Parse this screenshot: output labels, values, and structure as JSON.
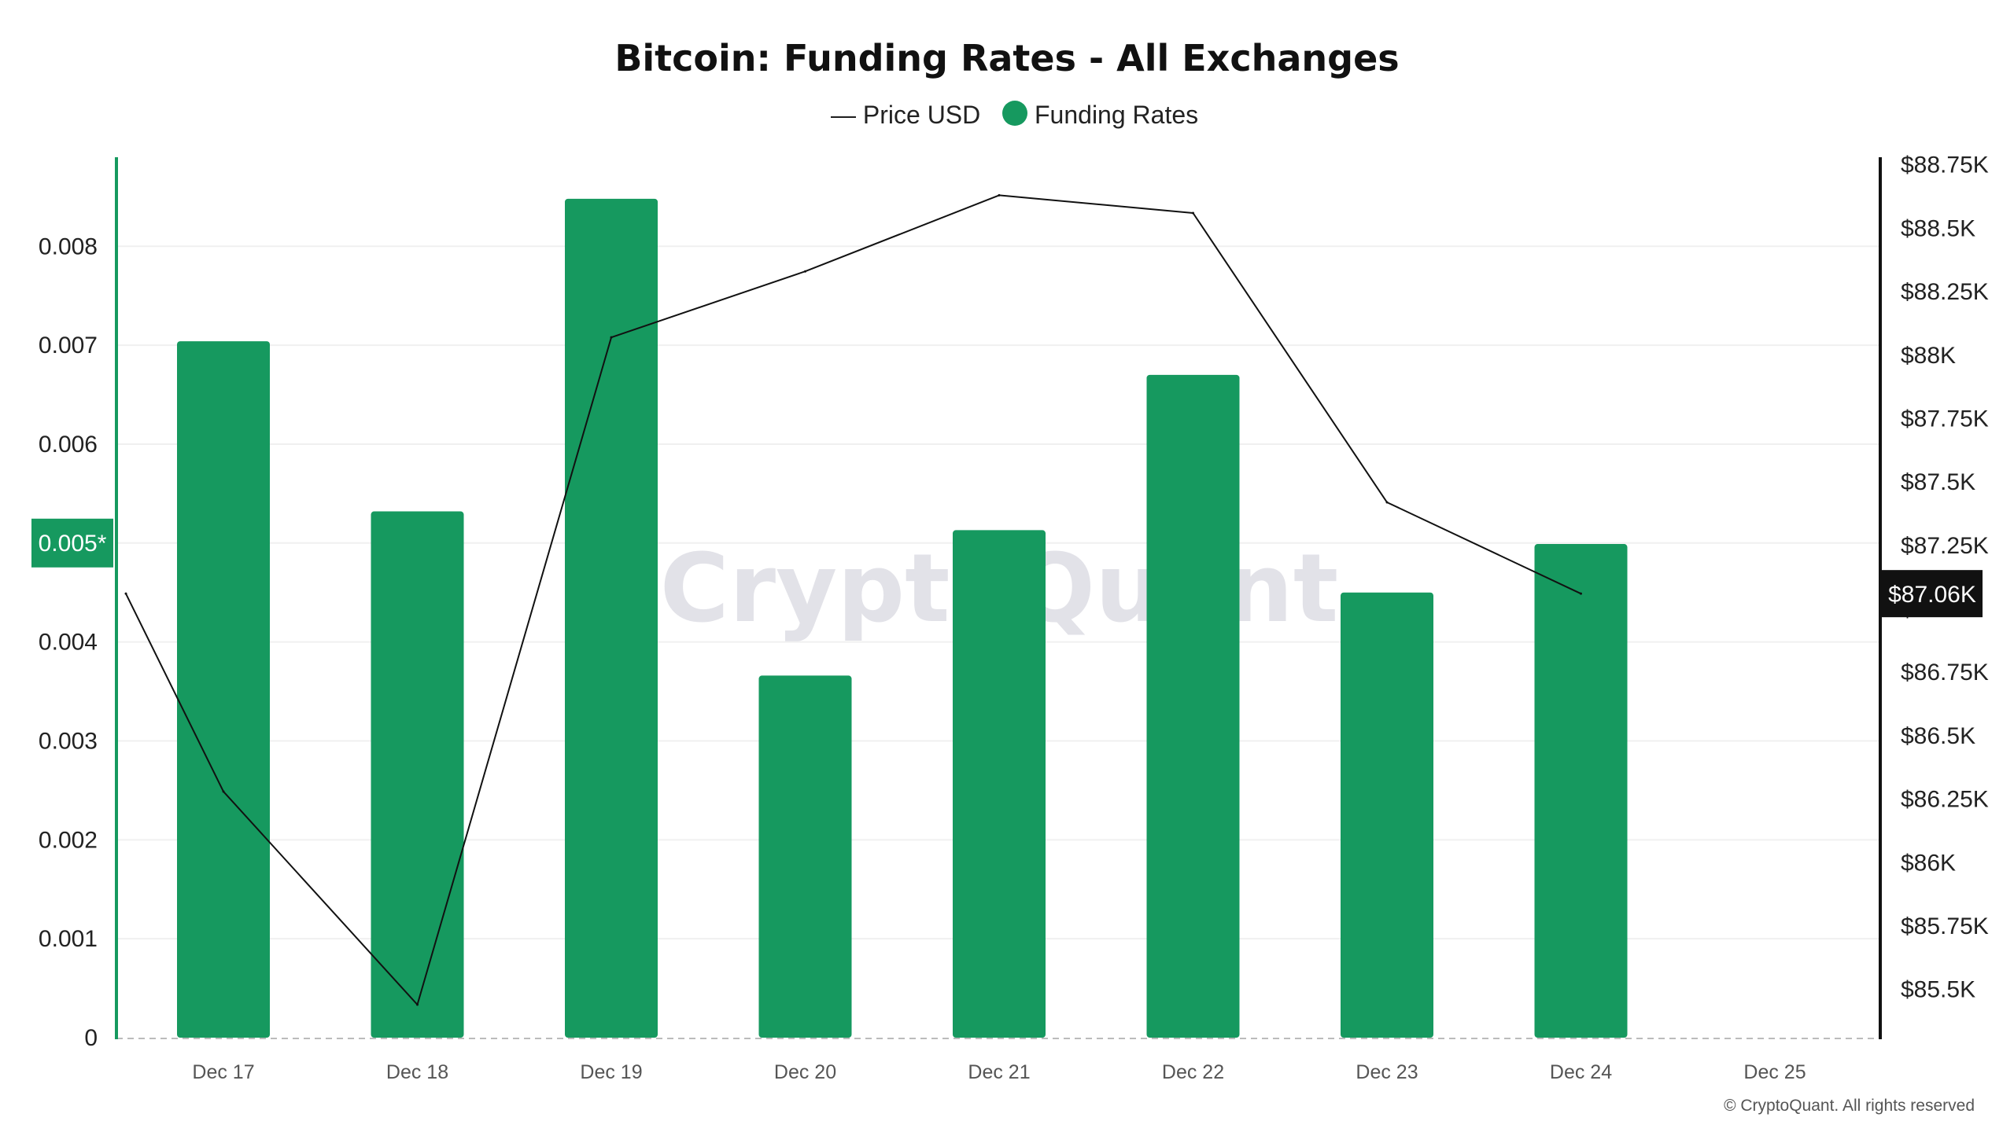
{
  "chart_data": {
    "type": "bar",
    "title": "Bitcoin: Funding Rates - All Exchanges",
    "categories": [
      "Dec 17",
      "Dec 18",
      "Dec 19",
      "Dec 20",
      "Dec 21",
      "Dec 22",
      "Dec 23",
      "Dec 24",
      "Dec 25"
    ],
    "series": [
      {
        "name": "Funding Rates",
        "type": "bar",
        "axis": "left",
        "color": "#16995f",
        "values": [
          0.00704,
          0.00532,
          0.00848,
          0.00366,
          0.00513,
          0.0067,
          0.0045,
          0.00499,
          null
        ]
      },
      {
        "name": "Price USD",
        "type": "line",
        "axis": "right",
        "color": "#111111",
        "values": [
          86280,
          85440,
          88070,
          88330,
          88630,
          88560,
          87420,
          87060,
          null
        ],
        "start_value": 87060
      }
    ],
    "left_axis": {
      "ylim": [
        0,
        0.0089
      ],
      "ticks": [
        0,
        0.001,
        0.002,
        0.003,
        0.004,
        0.005,
        0.006,
        0.007,
        0.008
      ],
      "tick_labels": [
        "0",
        "0.001",
        "0.002",
        "0.003",
        "0.004",
        "0.005*",
        "0.006",
        "0.007",
        "0.008"
      ],
      "highlight_value": 0.005,
      "highlight_label": "0.005*"
    },
    "right_axis": {
      "ylim": [
        85310,
        88780
      ],
      "ticks": [
        85500,
        85750,
        86000,
        86250,
        86500,
        86750,
        87000,
        87250,
        87500,
        87750,
        88000,
        88250,
        88500,
        88750
      ],
      "tick_labels": [
        "$85.5K",
        "$85.75K",
        "$86K",
        "$86.25K",
        "$86.5K",
        "$86.75K",
        "$87K",
        "$87.25K",
        "$87.5K",
        "$87.75K",
        "$88K",
        "$88.25K",
        "$88.5K",
        "$88.75K"
      ],
      "current_value": 87060,
      "current_label": "$87.06K"
    },
    "legend": {
      "position": "top-center",
      "items": [
        {
          "label": "— Price USD",
          "marker": "line"
        },
        {
          "label": "Funding Rates",
          "marker": "circle"
        }
      ]
    },
    "grid": true,
    "watermark": "CryptoQuant",
    "copyright": "© CryptoQuant. All rights reserved",
    "colors": {
      "bar": "#16995f",
      "line": "#111111",
      "left_axis": "#16995f",
      "right_axis": "#111111",
      "grid": "#f0f0f0",
      "badge_left": "#16995f",
      "badge_right": "#111111"
    }
  }
}
